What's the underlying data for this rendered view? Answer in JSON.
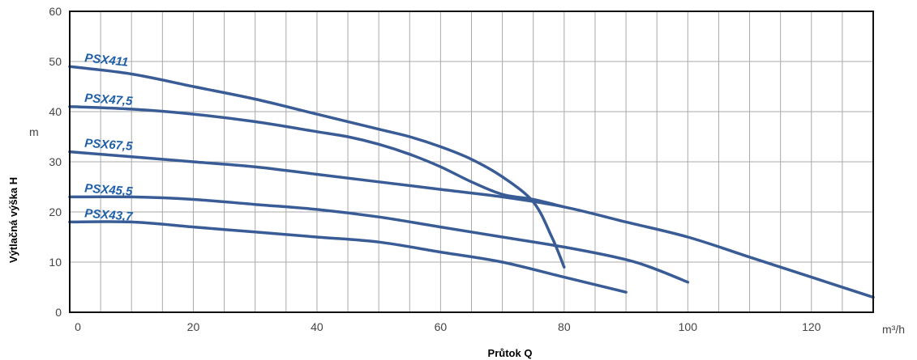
{
  "chart_data": {
    "type": "line",
    "title": "",
    "xlabel": "Průtok Q",
    "ylabel": "Výtlačná výška H",
    "x_unit": "m³/h",
    "y_unit": "m",
    "xlim": [
      0,
      130
    ],
    "ylim": [
      0,
      60
    ],
    "x_ticks": [
      "0",
      "20",
      "40",
      "60",
      "80",
      "100",
      "120"
    ],
    "y_ticks": [
      "0",
      "10",
      "20",
      "30",
      "40",
      "50",
      "60"
    ],
    "grid": true,
    "series_color": "#3a5c96",
    "label_color": "#1f5fa8",
    "series": [
      {
        "name": "PSX411",
        "x": [
          0,
          10,
          20,
          30,
          40,
          50,
          55,
          60,
          65,
          70,
          75,
          78,
          80
        ],
        "y": [
          49,
          47.5,
          45,
          42.5,
          39.5,
          36.5,
          35,
          33,
          30.5,
          27,
          22,
          15,
          9
        ]
      },
      {
        "name": "PSX47,5",
        "x": [
          0,
          10,
          20,
          30,
          40,
          45,
          50,
          55,
          60,
          65,
          70,
          75,
          80
        ],
        "y": [
          41,
          40.5,
          39.5,
          38,
          36,
          35,
          33.5,
          31.5,
          29,
          26,
          23.5,
          22.5,
          21
        ]
      },
      {
        "name": "PSX67,5",
        "x": [
          0,
          10,
          20,
          30,
          40,
          50,
          60,
          70,
          80,
          90,
          100,
          110,
          120,
          130
        ],
        "y": [
          32,
          31,
          30,
          29,
          27.5,
          26,
          24.5,
          23,
          21,
          18,
          15,
          11,
          7,
          3
        ]
      },
      {
        "name": "PSX45,5",
        "x": [
          0,
          10,
          20,
          30,
          40,
          50,
          60,
          70,
          80,
          90,
          95,
          100
        ],
        "y": [
          23,
          23,
          22.5,
          21.5,
          20.5,
          19,
          17,
          15,
          13,
          10.5,
          8.5,
          6
        ]
      },
      {
        "name": "PSX43,7",
        "x": [
          0,
          10,
          20,
          30,
          40,
          50,
          60,
          70,
          80,
          90
        ],
        "y": [
          18,
          18,
          17,
          16,
          15,
          14,
          12,
          10,
          7,
          4
        ]
      }
    ]
  }
}
